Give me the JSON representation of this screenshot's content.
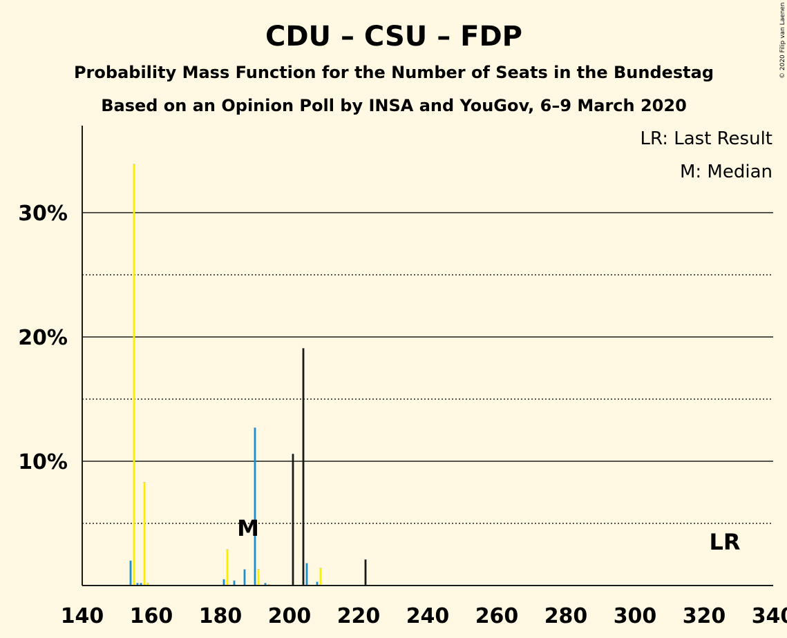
{
  "chart_data": {
    "type": "bar",
    "title": "CDU – CSU – FDP",
    "subtitle": "Probability Mass Function for the Number of Seats in the Bundestag",
    "subtitle2": "Based on an Opinion Poll by INSA and YouGov, 6–9 March 2020",
    "copyright": "© 2020 Filip van Laenen",
    "legend": [
      "LR: Last Result",
      "M: Median"
    ],
    "xlim": [
      140,
      340
    ],
    "ylim": [
      0,
      37
    ],
    "x_ticks": [
      140,
      160,
      180,
      200,
      220,
      240,
      260,
      280,
      300,
      320,
      340
    ],
    "y_ticks": [
      {
        "value": 10,
        "label": "10%"
      },
      {
        "value": 20,
        "label": "20%"
      },
      {
        "value": 30,
        "label": "30%"
      }
    ],
    "y_dotted": [
      5,
      15,
      25
    ],
    "colors": {
      "series1": "#1a8fd0",
      "series2": "#ffed00",
      "series3": "#1a1a1a"
    },
    "series": [
      {
        "values": [
          [
            154,
            2.0
          ],
          [
            156,
            0.2
          ],
          [
            157,
            0.2
          ],
          [
            181,
            0.5
          ],
          [
            184,
            0.4
          ],
          [
            187,
            1.3
          ],
          [
            190,
            12.7
          ],
          [
            193,
            0.2
          ],
          [
            205,
            1.8
          ],
          [
            208,
            0.3
          ]
        ]
      },
      {
        "values": [
          [
            155,
            33.9
          ],
          [
            158,
            8.3
          ],
          [
            159,
            0.2
          ],
          [
            182,
            2.9
          ],
          [
            191,
            1.3
          ],
          [
            194,
            0.1
          ],
          [
            209,
            1.4
          ]
        ]
      },
      {
        "values": [
          [
            201,
            10.6
          ],
          [
            204,
            19.1
          ],
          [
            222,
            2.1
          ]
        ]
      }
    ],
    "median": {
      "x": 188,
      "y": 4.6,
      "label": "M"
    },
    "last_result": {
      "x": 326,
      "y": 3.5,
      "label": "LR"
    }
  }
}
